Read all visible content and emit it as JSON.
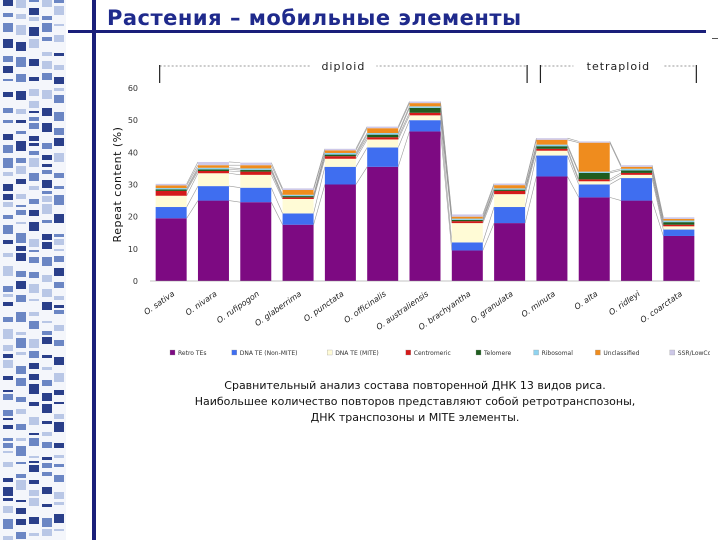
{
  "slide": {
    "title": "Растения – мобильные элементы",
    "caption_lines": [
      "Сравнительный анализ состава повторенной ДНК 13 видов риса.",
      "Наибольшее количество повторов представляют собой ретротранспозоны,",
      "ДНК транспозоны и MITE элементы."
    ]
  },
  "chart_data": {
    "type": "bar",
    "stacked": true,
    "ylabel": "Repeat content (%)",
    "xlabel": "",
    "ylim": [
      0,
      60
    ],
    "yticks": [
      0,
      10,
      20,
      30,
      40,
      50,
      60
    ],
    "categories": [
      "O. sativa",
      "O. nivara",
      "O. rufipogon",
      "O. glaberrima",
      "O. punctata",
      "O. officinalis",
      "O. australiensis",
      "O. brachyantha",
      "O. granulata",
      "O. minuta",
      "O. alta",
      "O. ridleyi",
      "O. coarctata"
    ],
    "groups": [
      {
        "label": "diploid",
        "from": 0,
        "to": 8
      },
      {
        "label": "tetraploid",
        "from": 9,
        "to": 12
      }
    ],
    "series": [
      {
        "name": "Retro TEs",
        "color": "#7d0a82",
        "values": [
          19.5,
          25,
          24.5,
          17.5,
          30,
          35.5,
          46.5,
          9.5,
          18,
          32.5,
          26,
          25,
          14
        ]
      },
      {
        "name": "DNA TE (Non-MITE)",
        "color": "#3f6ef0",
        "values": [
          3.5,
          4.5,
          4.5,
          3.5,
          5.5,
          6,
          3.5,
          2.5,
          5,
          6.5,
          4,
          7,
          2
        ]
      },
      {
        "name": "DNA TE (MITE)",
        "color": "#fffbd6",
        "values": [
          3.5,
          4,
          4,
          4.5,
          2.5,
          2.5,
          1.5,
          6,
          4,
          1.5,
          1,
          1,
          1
        ]
      },
      {
        "name": "Centromeric",
        "color": "#d41a1a",
        "values": [
          1.5,
          0.7,
          1,
          0.5,
          0.8,
          0.7,
          0.8,
          0.6,
          1,
          0.6,
          0.6,
          0.6,
          0.5
        ]
      },
      {
        "name": "Telomere",
        "color": "#1f5d1f",
        "values": [
          0.5,
          0.5,
          0.5,
          0.4,
          0.5,
          0.8,
          1.5,
          0.4,
          0.4,
          0.8,
          2,
          0.8,
          0.8
        ]
      },
      {
        "name": "Ribosomal",
        "color": "#8fd3ef",
        "values": [
          0.4,
          0.5,
          0.5,
          0.4,
          0.5,
          0.5,
          0.5,
          0.4,
          0.4,
          0.5,
          0.4,
          0.5,
          0.5
        ]
      },
      {
        "name": "Unclassified",
        "color": "#ef8c1e",
        "values": [
          0.8,
          0.8,
          1,
          1.5,
          0.8,
          1.5,
          1,
          0.6,
          1,
          1.5,
          9,
          0.6,
          0.5
        ]
      },
      {
        "name": "SSR/LowComp",
        "color": "#cdc8e8",
        "values": [
          0.5,
          1,
          0.8,
          0.5,
          0.5,
          0.5,
          0.5,
          0.7,
          0.5,
          0.5,
          0.4,
          0.5,
          0.5
        ]
      }
    ]
  }
}
